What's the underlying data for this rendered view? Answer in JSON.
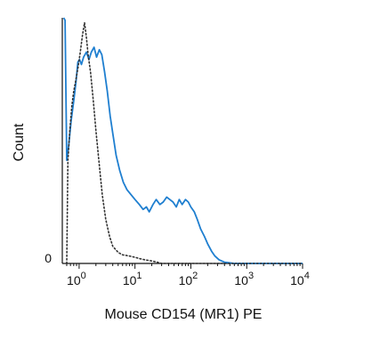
{
  "chart_data": {
    "type": "line",
    "xlabel": "Mouse CD154 (MR1) PE",
    "ylabel": "Count",
    "x_scale": "log",
    "xlim": [
      0.5,
      10000
    ],
    "ylim": [
      0,
      100
    ],
    "y_ticks": [
      {
        "value": 0,
        "label": "0"
      }
    ],
    "x_ticks": [
      {
        "value": 1,
        "base": "10",
        "exp": "0"
      },
      {
        "value": 10,
        "base": "10",
        "exp": "1"
      },
      {
        "value": 100,
        "base": "10",
        "exp": "2"
      },
      {
        "value": 1000,
        "base": "10",
        "exp": "3"
      },
      {
        "value": 10000,
        "base": "10",
        "exp": "4"
      }
    ],
    "series": [
      {
        "style": "solid",
        "color": "#1f7fd0",
        "points": [
          [
            0.53,
            100
          ],
          [
            0.56,
            99
          ],
          [
            0.6,
            42
          ],
          [
            0.65,
            48
          ],
          [
            0.72,
            58
          ],
          [
            0.8,
            66
          ],
          [
            0.88,
            74
          ],
          [
            0.95,
            82
          ],
          [
            1.02,
            83
          ],
          [
            1.1,
            81
          ],
          [
            1.2,
            84
          ],
          [
            1.35,
            86
          ],
          [
            1.5,
            83
          ],
          [
            1.65,
            86
          ],
          [
            1.85,
            88
          ],
          [
            2.05,
            84
          ],
          [
            2.3,
            87
          ],
          [
            2.55,
            85
          ],
          [
            2.85,
            78
          ],
          [
            3.2,
            70
          ],
          [
            3.6,
            60
          ],
          [
            4.0,
            53
          ],
          [
            4.6,
            44
          ],
          [
            5.3,
            38
          ],
          [
            6.2,
            33
          ],
          [
            7.2,
            30
          ],
          [
            8.5,
            28
          ],
          [
            10,
            26
          ],
          [
            12,
            24
          ],
          [
            14,
            22
          ],
          [
            16,
            23
          ],
          [
            18,
            21
          ],
          [
            21,
            24
          ],
          [
            24,
            26
          ],
          [
            28,
            24
          ],
          [
            32,
            25
          ],
          [
            37,
            27
          ],
          [
            42,
            26
          ],
          [
            48,
            25
          ],
          [
            55,
            23
          ],
          [
            62,
            26
          ],
          [
            70,
            24
          ],
          [
            80,
            26
          ],
          [
            90,
            25
          ],
          [
            100,
            23
          ],
          [
            115,
            21
          ],
          [
            130,
            18
          ],
          [
            150,
            14
          ],
          [
            175,
            11
          ],
          [
            200,
            8
          ],
          [
            235,
            5
          ],
          [
            270,
            3
          ],
          [
            320,
            1.5
          ],
          [
            400,
            0.5
          ],
          [
            600,
            0
          ],
          [
            1000,
            0
          ],
          [
            10000,
            0
          ]
        ]
      },
      {
        "style": "dotted",
        "color": "#333333",
        "points": [
          [
            0.6,
            0
          ],
          [
            0.63,
            42
          ],
          [
            0.68,
            54
          ],
          [
            0.74,
            64
          ],
          [
            0.8,
            70
          ],
          [
            0.88,
            75
          ],
          [
            0.96,
            80
          ],
          [
            1.05,
            86
          ],
          [
            1.15,
            93
          ],
          [
            1.25,
            98
          ],
          [
            1.35,
            92
          ],
          [
            1.45,
            85
          ],
          [
            1.6,
            78
          ],
          [
            1.8,
            66
          ],
          [
            2.0,
            54
          ],
          [
            2.3,
            40
          ],
          [
            2.6,
            28
          ],
          [
            3.0,
            18
          ],
          [
            3.5,
            11
          ],
          [
            4.0,
            7
          ],
          [
            5.0,
            4.5
          ],
          [
            6.0,
            3.5
          ],
          [
            8.0,
            3
          ],
          [
            10,
            2.5
          ],
          [
            12,
            2
          ],
          [
            15,
            1.5
          ],
          [
            20,
            1
          ],
          [
            25,
            0.5
          ],
          [
            30,
            0
          ],
          [
            10000,
            0
          ]
        ]
      }
    ]
  }
}
